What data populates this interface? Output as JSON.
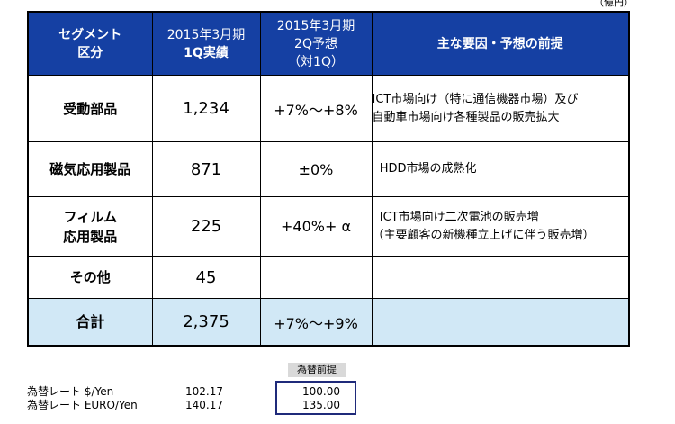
{
  "unit": "（億円）",
  "table": {
    "headers": {
      "segment": [
        "セグメント",
        "区分"
      ],
      "actual": [
        "2015年3月期",
        "1Q実績"
      ],
      "forecast": [
        "2015年3月期",
        "2Q予想",
        "（対1Q）"
      ],
      "factors": "主な要因・予想の前提"
    },
    "rows": [
      {
        "segment": [
          "受動部品"
        ],
        "actual": "1,234",
        "forecast": "+7%～+8%",
        "factors": [
          " ICT市場向け（特に通信機器市場）及び",
          "自動車市場向け各種製品の販売拡大"
        ]
      },
      {
        "segment": [
          "磁気応用製品"
        ],
        "actual": "871",
        "forecast": "±0%",
        "factors": [
          "  HDD市場の成熟化"
        ]
      },
      {
        "segment": [
          "フィルム",
          "応用製品"
        ],
        "actual": "225",
        "forecast": "+40%+ α",
        "factors": [
          "  ICT市場向け二次電池の販売増",
          "（主要顧客の新機種立上げに伴う販売増）"
        ]
      },
      {
        "segment": [
          "その他"
        ],
        "actual": "45",
        "forecast": "",
        "factors": [
          ""
        ]
      }
    ],
    "total": {
      "segment": "合計",
      "actual": "2,375",
      "forecast": "+7%～+9%",
      "factors": ""
    }
  },
  "fx": {
    "assumption_label": "為替前提",
    "rows": [
      {
        "label": "為替レート $/Yen",
        "current": "102.17",
        "assumption": "100.00"
      },
      {
        "label": "為替レート EURO/Yen",
        "current": "140.17",
        "assumption": "135.00"
      }
    ]
  }
}
